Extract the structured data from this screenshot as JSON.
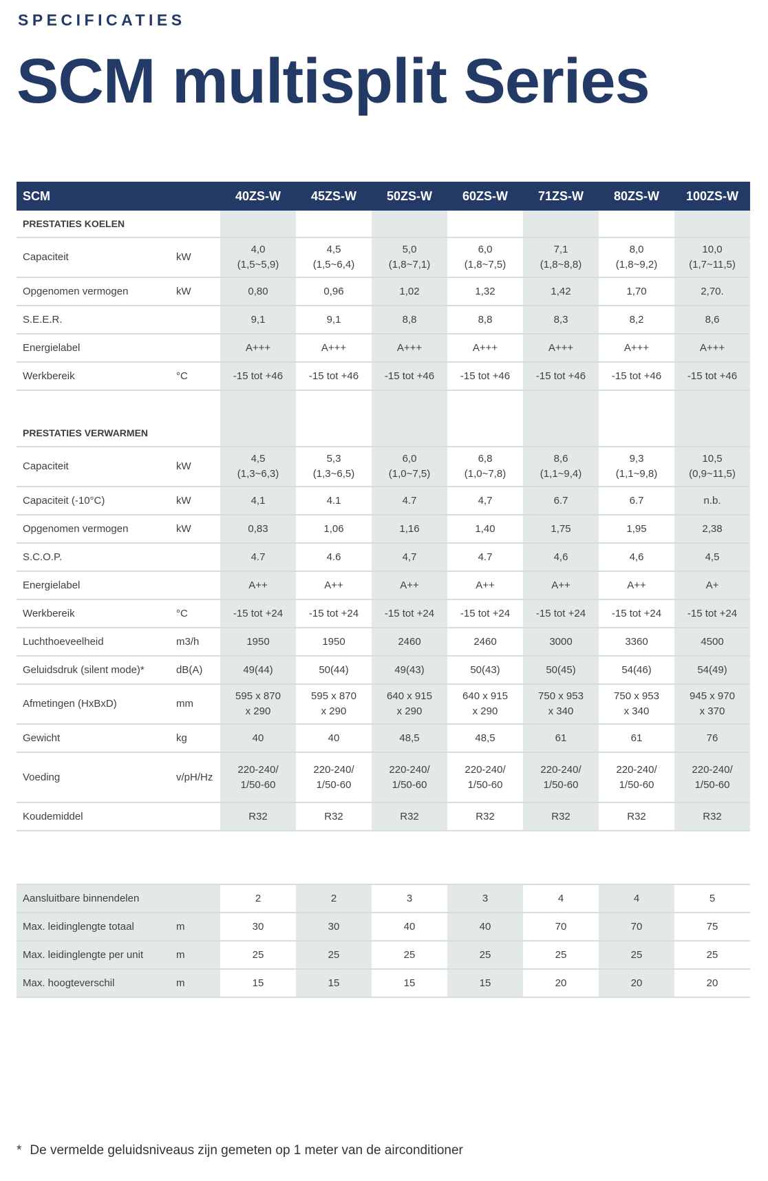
{
  "eyebrow": "SPECIFICATIES",
  "title": "SCM multisplit Series",
  "header": {
    "label": "SCM",
    "models": [
      "40ZS-W",
      "45ZS-W",
      "50ZS-W",
      "60ZS-W",
      "71ZS-W",
      "80ZS-W",
      "100ZS-W"
    ]
  },
  "sections": [
    {
      "heading": "PRESTATIES KOELEN",
      "rows": [
        {
          "label": "Capaciteit",
          "unit": "kW",
          "values": [
            "4,0\n(1,5~5,9)",
            "4,5\n(1,5~6,4)",
            "5,0\n(1,8~7,1)",
            "6,0\n(1,8~7,5)",
            "7,1\n(1,8~8,8)",
            "8,0\n(1,8~9,2)",
            "10,0\n(1,7~11,5)"
          ]
        },
        {
          "label": "Opgenomen vermogen",
          "unit": "kW",
          "values": [
            "0,80",
            "0,96",
            "1,02",
            "1,32",
            "1,42",
            "1,70",
            "2,70."
          ]
        },
        {
          "label": "S.E.E.R.",
          "unit": "",
          "values": [
            "9,1",
            "9,1",
            "8,8",
            "8,8",
            "8,3",
            "8,2",
            "8,6"
          ]
        },
        {
          "label": "Energielabel",
          "unit": "",
          "values": [
            "A+++",
            "A+++",
            "A+++",
            "A+++",
            "A+++",
            "A+++",
            "A+++"
          ]
        },
        {
          "label": "Werkbereik",
          "unit": "°C",
          "values": [
            "-15 tot +46",
            "-15 tot +46",
            "-15 tot +46",
            "-15 tot +46",
            "-15 tot +46",
            "-15 tot +46",
            "-15 tot +46"
          ]
        }
      ]
    },
    {
      "heading": "PRESTATIES VERWARMEN",
      "rows": [
        {
          "label": "Capaciteit",
          "unit": "kW",
          "values": [
            "4,5\n(1,3~6,3)",
            "5,3\n(1,3~6,5)",
            "6,0\n(1,0~7,5)",
            "6,8\n(1,0~7,8)",
            "8,6\n(1,1~9,4)",
            "9,3\n(1,1~9,8)",
            "10,5\n(0,9~11,5)"
          ]
        },
        {
          "label": "Capaciteit (-10°C)",
          "unit": "kW",
          "values": [
            "4,1",
            "4.1",
            "4.7",
            "4,7",
            "6.7",
            "6.7",
            "n.b."
          ]
        },
        {
          "label": "Opgenomen vermogen",
          "unit": "kW",
          "values": [
            "0,83",
            "1,06",
            "1,16",
            "1,40",
            "1,75",
            "1,95",
            "2,38"
          ]
        },
        {
          "label": "S.C.O.P.",
          "unit": "",
          "values": [
            "4.7",
            "4.6",
            "4,7",
            "4.7",
            "4,6",
            "4,6",
            "4,5"
          ]
        },
        {
          "label": "Energielabel",
          "unit": "",
          "values": [
            "A++",
            "A++",
            "A++",
            "A++",
            "A++",
            "A++",
            "A+"
          ]
        },
        {
          "label": "Werkbereik",
          "unit": "°C",
          "values": [
            "-15 tot +24",
            "-15 tot +24",
            "-15 tot +24",
            "-15 tot +24",
            "-15 tot +24",
            "-15 tot +24",
            "-15 tot +24"
          ]
        },
        {
          "label": "Luchthoeveelheid",
          "unit": "m3/h",
          "values": [
            "1950",
            "1950",
            "2460",
            "2460",
            "3000",
            "3360",
            "4500"
          ]
        },
        {
          "label": "Geluidsdruk (silent mode)*",
          "unit": "dB(A)",
          "values": [
            "49(44)",
            "50(44)",
            "49(43)",
            "50(43)",
            "50(45)",
            "54(46)",
            "54(49)"
          ]
        },
        {
          "label": "Afmetingen (HxBxD)",
          "unit": "mm",
          "values": [
            "595 x 870\nx 290",
            "595 x 870\nx 290",
            "640 x 915\nx 290",
            "640 x 915\nx 290",
            "750 x 953\nx 340",
            "750 x 953\nx 340",
            "945 x 970\nx 370"
          ]
        },
        {
          "label": "Gewicht",
          "unit": "kg",
          "values": [
            "40",
            "40",
            "48,5",
            "48,5",
            "61",
            "61",
            "76"
          ]
        },
        {
          "label": "Voeding",
          "unit": "v/pH/Hz",
          "values": [
            "220-240/\n1/50-60",
            "220-240/\n1/50-60",
            "220-240/\n1/50-60",
            "220-240/\n1/50-60",
            "220-240/\n1/50-60",
            "220-240/\n1/50-60",
            "220-240/\n1/50-60"
          ]
        },
        {
          "label": "Koudemiddel",
          "unit": "",
          "values": [
            "R32",
            "R32",
            "R32",
            "R32",
            "R32",
            "R32",
            "R32"
          ]
        }
      ]
    }
  ],
  "piping": [
    {
      "label": "Aansluitbare binnendelen",
      "unit": "",
      "values": [
        "2",
        "2",
        "3",
        "3",
        "4",
        "4",
        "5"
      ]
    },
    {
      "label": "Max. leidinglengte totaal",
      "unit": "m",
      "values": [
        "30",
        "30",
        "40",
        "40",
        "70",
        "70",
        "75"
      ]
    },
    {
      "label": "Max. leidinglengte per unit",
      "unit": "m",
      "values": [
        "25",
        "25",
        "25",
        "25",
        "25",
        "25",
        "25"
      ]
    },
    {
      "label": "Max. hoogteverschil",
      "unit": "m",
      "values": [
        "15",
        "15",
        "15",
        "15",
        "20",
        "20",
        "20"
      ]
    }
  ],
  "footnote": {
    "marker": "*",
    "text": "De vermelde geluidsniveaus zijn gemeten op 1 meter van de airconditioner"
  },
  "colors": {
    "brand": "#233a66",
    "shade": "#e3e8e9"
  }
}
